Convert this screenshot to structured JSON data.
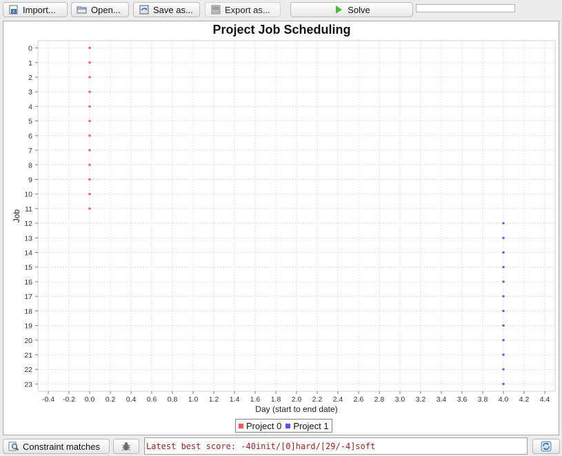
{
  "toolbar": {
    "import_label": "Import...",
    "open_label": "Open...",
    "save_label": "Save as...",
    "export_label": "Export as...",
    "solve_label": "Solve"
  },
  "chart_data": {
    "type": "scatter",
    "title": "Project Job Scheduling",
    "xlabel": "Day (start to end date)",
    "ylabel": "Job",
    "xlim": [
      -0.5,
      4.5
    ],
    "ylim": [
      -0.5,
      23.5
    ],
    "x_ticks": [
      -0.4,
      -0.2,
      0.0,
      0.2,
      0.4,
      0.6,
      0.8,
      1.0,
      1.2,
      1.4,
      1.6,
      1.8,
      2.0,
      2.2,
      2.4,
      2.6,
      2.8,
      3.0,
      3.2,
      3.4,
      3.6,
      3.8,
      4.0,
      4.2,
      4.4
    ],
    "y_ticks": [
      0,
      1,
      2,
      3,
      4,
      5,
      6,
      7,
      8,
      9,
      10,
      11,
      12,
      13,
      14,
      15,
      16,
      17,
      18,
      19,
      20,
      21,
      22,
      23
    ],
    "y_inverted": true,
    "grid": true,
    "legend_position": "bottom-center",
    "series": [
      {
        "name": "Project 0",
        "color": "#ff5555",
        "x": [
          0,
          0,
          0,
          0,
          0,
          0,
          0,
          0,
          0,
          0,
          0,
          0
        ],
        "y": [
          0,
          1,
          2,
          3,
          4,
          5,
          6,
          7,
          8,
          9,
          10,
          11
        ]
      },
      {
        "name": "Project 1",
        "color": "#5555ff",
        "x": [
          4,
          4,
          4,
          4,
          4,
          4,
          4,
          4,
          4,
          4,
          4,
          4
        ],
        "y": [
          12,
          13,
          14,
          15,
          16,
          17,
          18,
          19,
          20,
          21,
          22,
          23
        ]
      }
    ]
  },
  "bottom": {
    "constraint_label": "Constraint matches",
    "status_text": "Latest best score: -40init/[0]hard/[29/-4]soft"
  },
  "icons": {
    "import": "import-icon",
    "open": "folder-icon",
    "save": "save-icon",
    "export": "export-icon",
    "solve": "play-icon",
    "constraint": "magnifier-icon",
    "bug": "bug-icon",
    "refresh": "refresh-icon"
  }
}
